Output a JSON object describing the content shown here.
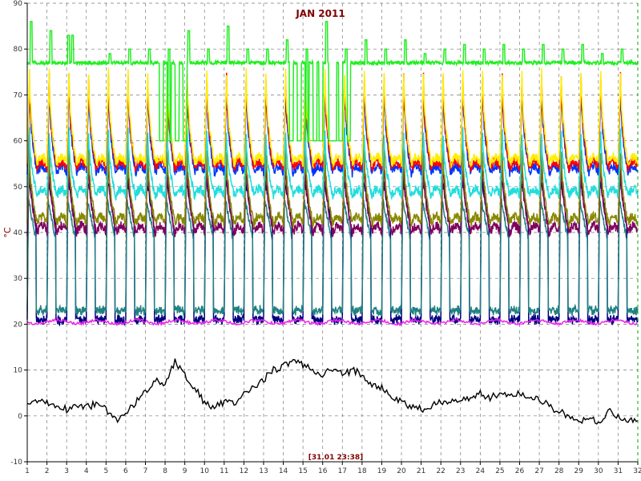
{
  "chart_data": {
    "type": "line",
    "title": "JAN 2011",
    "ylabel": "°C",
    "xlabel": "",
    "timestamp": "[31.01 23:38]",
    "xlim": [
      1,
      32
    ],
    "ylim": [
      -10,
      90
    ],
    "x_ticks": [
      "1",
      "2",
      "3",
      "4",
      "5",
      "6",
      "7",
      "8",
      "9",
      "10",
      "11",
      "12",
      "13",
      "14",
      "15",
      "16",
      "17",
      "18",
      "19",
      "20",
      "21",
      "22",
      "23",
      "24",
      "25",
      "26",
      "27",
      "28",
      "29",
      "30",
      "31",
      "32"
    ],
    "y_ticks": [
      "-10",
      "0",
      "10",
      "20",
      "30",
      "40",
      "50",
      "60",
      "70",
      "80",
      "90"
    ],
    "grid": true,
    "legend": "none",
    "colors": {
      "title": "#800000",
      "ylabel": "#800000",
      "timestamp": "#800000",
      "grid": "#7a7a7a",
      "axis": "#000000",
      "right_axis": "#00aa00",
      "background": "#ffffff"
    },
    "series": [
      {
        "color": "#22ee22",
        "baseline": 77,
        "baseline_drop_days": [
          7.8,
          8.2,
          8.6,
          9.0,
          14.4,
          14.8,
          15.2,
          15.6,
          15.9,
          16.4,
          16.6,
          16.9,
          17.3
        ],
        "drop_to": 60,
        "peaks": [
          {
            "x": 1.2,
            "y": 86
          },
          {
            "x": 2.2,
            "y": 84
          },
          {
            "x": 3.1,
            "y": 83
          },
          {
            "x": 3.3,
            "y": 83
          },
          {
            "x": 5.2,
            "y": 79
          },
          {
            "x": 6.2,
            "y": 80
          },
          {
            "x": 7.2,
            "y": 80
          },
          {
            "x": 8.2,
            "y": 80
          },
          {
            "x": 9.2,
            "y": 84
          },
          {
            "x": 10.2,
            "y": 80
          },
          {
            "x": 11.2,
            "y": 85
          },
          {
            "x": 12.2,
            "y": 80
          },
          {
            "x": 13.2,
            "y": 80
          },
          {
            "x": 14.2,
            "y": 82
          },
          {
            "x": 15.2,
            "y": 80
          },
          {
            "x": 16.2,
            "y": 86
          },
          {
            "x": 17.2,
            "y": 80
          },
          {
            "x": 18.2,
            "y": 82
          },
          {
            "x": 19.2,
            "y": 80
          },
          {
            "x": 20.2,
            "y": 82
          },
          {
            "x": 21.2,
            "y": 79
          },
          {
            "x": 22.2,
            "y": 80
          },
          {
            "x": 23.2,
            "y": 81
          },
          {
            "x": 24.2,
            "y": 80
          },
          {
            "x": 25.2,
            "y": 81
          },
          {
            "x": 26.2,
            "y": 80
          },
          {
            "x": 27.2,
            "y": 81
          },
          {
            "x": 28.2,
            "y": 80
          },
          {
            "x": 29.2,
            "y": 81
          },
          {
            "x": 30.2,
            "y": 79
          },
          {
            "x": 31.2,
            "y": 80
          }
        ]
      },
      {
        "color": "#ffee00",
        "kind": "daily",
        "peak": 75,
        "trough": 55
      },
      {
        "color": "#ff0000",
        "kind": "daily",
        "peak": 74,
        "trough": 54
      },
      {
        "color": "#0033ff",
        "kind": "daily",
        "peak": 72,
        "trough": 53
      },
      {
        "color": "#22dddd",
        "kind": "daily",
        "peak": 62,
        "trough": 48
      },
      {
        "color": "#800060",
        "kind": "daily",
        "peak": 56,
        "trough": 40
      },
      {
        "color": "#888800",
        "kind": "daily",
        "peak": 58,
        "trough": 42
      },
      {
        "color": "#000080",
        "kind": "cycle",
        "peak": 52,
        "trough": 21
      },
      {
        "color": "#208080",
        "kind": "cycle",
        "peak": 47,
        "trough": 23
      },
      {
        "color": "#ee22ee",
        "kind": "flat",
        "level": 20.5
      },
      {
        "color": "#000000",
        "kind": "points",
        "x": [
          1,
          1.5,
          2,
          2.5,
          3,
          3.5,
          4,
          4.5,
          5,
          5.5,
          6,
          6.5,
          7,
          7.5,
          8,
          8.5,
          9,
          9.5,
          10,
          10.5,
          11,
          11.5,
          12,
          12.5,
          13,
          13.5,
          14,
          14.5,
          15,
          15.5,
          16,
          16.5,
          17,
          17.5,
          18,
          18.5,
          19,
          19.5,
          20,
          20.5,
          21,
          21.5,
          22,
          22.5,
          23,
          23.5,
          24,
          24.5,
          25,
          25.5,
          26,
          26.5,
          27,
          27.5,
          28,
          28.5,
          29,
          29.5,
          30,
          30.5,
          31,
          31.5,
          32
        ],
        "y": [
          3,
          3.5,
          3,
          2,
          1.5,
          2.5,
          2,
          2.5,
          1.5,
          -1,
          0.5,
          3,
          5,
          8,
          7,
          12,
          9,
          6,
          3,
          2,
          3,
          2.5,
          5,
          6,
          8,
          10,
          11,
          12,
          11,
          10,
          9,
          10,
          9,
          10,
          9,
          7,
          6,
          4,
          3,
          2,
          1.5,
          2,
          3,
          3.5,
          3,
          4,
          5,
          4,
          5,
          4.5,
          5,
          4,
          4,
          2,
          1,
          0,
          -1.5,
          0,
          -2,
          1,
          0,
          -1,
          -1
        ]
      }
    ]
  }
}
